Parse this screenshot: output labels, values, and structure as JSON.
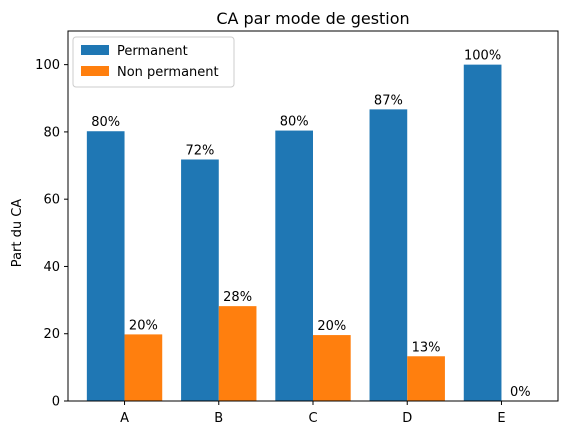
{
  "chart_data": {
    "type": "bar",
    "title": "CA par mode de gestion",
    "xlabel": "",
    "ylabel": "Part du CA",
    "categories": [
      "A",
      "B",
      "C",
      "D",
      "E"
    ],
    "series": [
      {
        "name": "Permanent",
        "color": "#1f77b4",
        "values": [
          80.2,
          71.8,
          80.4,
          86.7,
          100
        ],
        "labels": [
          "80%",
          "72%",
          "80%",
          "87%",
          "100%"
        ]
      },
      {
        "name": "Non permanent",
        "color": "#ff7f0e",
        "values": [
          19.8,
          28.2,
          19.6,
          13.3,
          0
        ],
        "labels": [
          "20%",
          "28%",
          "20%",
          "13%",
          "0%"
        ]
      }
    ],
    "ylim": [
      0,
      110
    ],
    "yticks": [
      0,
      20,
      40,
      60,
      80,
      100
    ],
    "grid": false,
    "legend_position": "top-left"
  }
}
